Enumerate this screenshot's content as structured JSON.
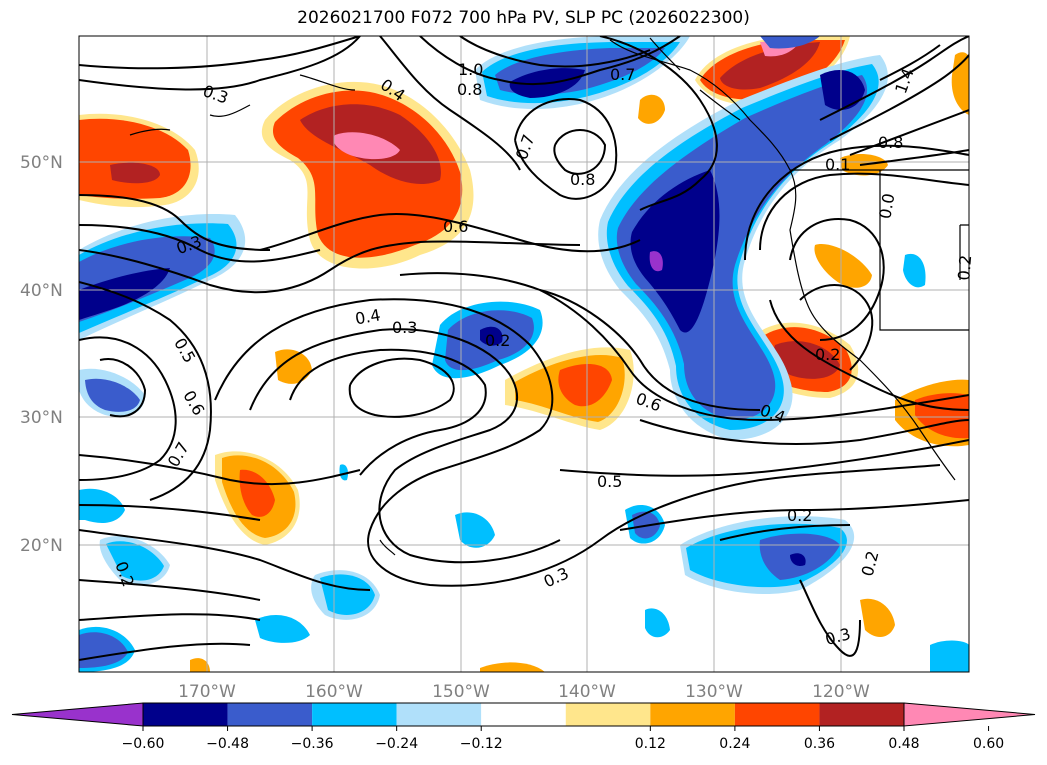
{
  "title": "2026021700 F072 700 hPa PV, SLP PC (2026022300)",
  "lat_labels": [
    "50°N",
    "40°N",
    "30°N",
    "20°N"
  ],
  "lon_labels": [
    "170°W",
    "160°W",
    "150°W",
    "140°W",
    "130°W",
    "120°W"
  ],
  "colorbar": {
    "ticks": [
      "−0.60",
      "−0.48",
      "−0.36",
      "−0.24",
      "−0.12",
      "0.12",
      "0.24",
      "0.36",
      "0.48",
      "0.60"
    ],
    "colors": [
      "#9932cc",
      "#00008b",
      "#3a5ccc",
      "#00bfff",
      "#b0e0fa",
      "#ffffff",
      "#ffe68c",
      "#ffa500",
      "#ff4500",
      "#b22222",
      "#ff88b4"
    ]
  },
  "contour_labels": [
    "0.3",
    "0.4",
    "1.0",
    "0.8",
    "0.7",
    "0.6",
    "0.3",
    "0.8",
    "0.4",
    "0.3",
    "0.2",
    "0.5",
    "0.6",
    "0.7",
    "0.6",
    "0.5",
    "0.3",
    "0.2",
    "0.2",
    "0.4",
    "0.2",
    "0.3",
    "0.8",
    "1.4",
    "0.1",
    "0.0",
    "0.2",
    "0.7",
    "0.2"
  ]
}
